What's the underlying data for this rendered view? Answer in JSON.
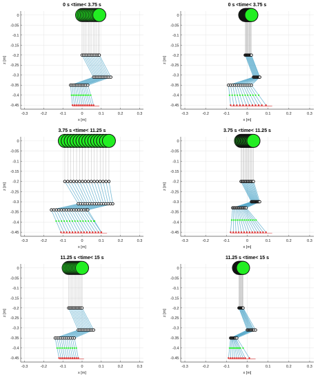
{
  "figure": {
    "axis_labels": {
      "x": "x [m]",
      "y": "z [m]"
    },
    "x_ticks": [
      "-0.3",
      "-0.2",
      "-0.1",
      "0",
      "0.1",
      "0.2",
      "0.3"
    ],
    "y_ticks": [
      "0",
      "-0.05",
      "-0.1",
      "-0.15",
      "-0.2",
      "-0.25",
      "-0.3",
      "-0.35",
      "-0.4",
      "-0.45"
    ],
    "colors": {
      "body": "#22ee22",
      "body_edge": "#111111",
      "joint": "#111111",
      "link": "#4aa3c7",
      "foot_point": "#dd3333",
      "axis": "#555555",
      "grid": "#e6e6e6"
    }
  },
  "chart_data": [
    {
      "type": "scatter",
      "title": "0 s <time< 3.75 s",
      "xlabel": "x [m]",
      "ylabel": "z [m]",
      "xlim": [
        -0.32,
        0.32
      ],
      "ylim": [
        -0.47,
        0.02
      ],
      "grid": true,
      "snapshots": 12,
      "body_x": [
        0.0,
        0.0083,
        0.0167,
        0.025,
        0.0333,
        0.0417,
        0.05,
        0.0583,
        0.0667,
        0.075,
        0.0833,
        0.09
      ],
      "body_z": 0,
      "joints_z": [
        -0.2,
        -0.31,
        -0.35
      ],
      "joint1_x": [
        0.0,
        0.0083,
        0.0167,
        0.025,
        0.0333,
        0.0417,
        0.05,
        0.0583,
        0.0667,
        0.075,
        0.0833,
        0.09
      ],
      "joint2_x": [
        0.06,
        0.068,
        0.076,
        0.084,
        0.092,
        0.1,
        0.108,
        0.116,
        0.124,
        0.132,
        0.14,
        0.15
      ],
      "joint3_x": [
        -0.06,
        -0.052,
        -0.044,
        -0.036,
        -0.028,
        -0.02,
        -0.012,
        -0.004,
        0.004,
        0.012,
        0.02,
        0.03
      ],
      "foot_x": [
        -0.05,
        -0.04,
        -0.03,
        -0.02,
        -0.01,
        0.0,
        0.01,
        0.02,
        0.03,
        0.04,
        0.05,
        0.06
      ],
      "foot_z": -0.45
    },
    {
      "type": "scatter",
      "title": "0 s <time< 3.75 s",
      "xlabel": "x [m]",
      "ylabel": "z [m]",
      "xlim": [
        -0.32,
        0.32
      ],
      "ylim": [
        -0.47,
        0.02
      ],
      "grid": true,
      "snapshots": 12,
      "body_x": [
        -0.01,
        -0.0073,
        -0.0045,
        -0.0018,
        0.0009,
        0.0036,
        0.0064,
        0.0091,
        0.0118,
        0.0145,
        0.0173,
        0.02
      ],
      "body_z": 0,
      "joints_z": [
        -0.2,
        -0.31,
        -0.35
      ],
      "joint1_x": [
        -0.01,
        -0.0073,
        -0.0045,
        -0.0018,
        0.0009,
        0.0036,
        0.0064,
        0.0091,
        0.0118,
        0.0145,
        0.0173,
        0.02
      ],
      "joint2_x": [
        0.03,
        0.033,
        0.036,
        0.039,
        0.042,
        0.045,
        0.048,
        0.051,
        0.054,
        0.057,
        0.06,
        0.06
      ],
      "joint3_x": [
        -0.09,
        -0.08,
        -0.07,
        -0.06,
        -0.05,
        -0.04,
        -0.03,
        -0.02,
        -0.01,
        -0.0,
        0.01,
        0.02
      ],
      "foot_x": [
        -0.08,
        -0.065,
        -0.05,
        -0.035,
        -0.02,
        -0.005,
        0.01,
        0.025,
        0.04,
        0.055,
        0.07,
        0.09
      ],
      "foot_z": -0.45
    },
    {
      "type": "scatter",
      "title": "3.75 s <time< 11.25 s",
      "xlabel": "x [m]",
      "ylabel": "z [m]",
      "xlim": [
        -0.32,
        0.32
      ],
      "ylim": [
        -0.47,
        0.02
      ],
      "grid": true,
      "snapshots": 16,
      "body_x": [
        -0.09,
        -0.0747,
        -0.0593,
        -0.044,
        -0.0287,
        -0.0133,
        0.002,
        0.0173,
        0.0327,
        0.048,
        0.0633,
        0.0787,
        0.094,
        0.1093,
        0.1247,
        0.14
      ],
      "body_z": 0,
      "joints_z": [
        -0.2,
        -0.31,
        -0.34
      ],
      "joint1_x": [
        -0.09,
        -0.0747,
        -0.0593,
        -0.044,
        -0.0287,
        -0.0133,
        0.002,
        0.0173,
        0.0327,
        0.048,
        0.0633,
        0.0787,
        0.094,
        0.1093,
        0.1247,
        0.14
      ],
      "joint2_x": [
        -0.02,
        -0.008,
        0.004,
        0.016,
        0.028,
        0.04,
        0.052,
        0.064,
        0.076,
        0.088,
        0.1,
        0.112,
        0.124,
        0.136,
        0.148,
        0.16
      ],
      "joint3_x": [
        -0.16,
        -0.147,
        -0.134,
        -0.121,
        -0.108,
        -0.095,
        -0.082,
        -0.069,
        -0.056,
        -0.043,
        -0.03,
        -0.017,
        -0.004,
        0.009,
        0.022,
        0.03
      ],
      "foot_x": [
        -0.11,
        -0.095,
        -0.08,
        -0.065,
        -0.05,
        -0.035,
        -0.02,
        -0.005,
        0.01,
        0.025,
        0.04,
        0.055,
        0.07,
        0.085,
        0.1,
        0.1
      ],
      "foot_z": -0.45
    },
    {
      "type": "scatter",
      "title": "3.75 s <time< 11.25 s",
      "xlabel": "x [m]",
      "ylabel": "z [m]",
      "xlim": [
        -0.32,
        0.32
      ],
      "ylim": [
        -0.47,
        0.02
      ],
      "grid": true,
      "snapshots": 14,
      "body_x": [
        -0.03,
        -0.0254,
        -0.0208,
        -0.0162,
        -0.0115,
        -0.0069,
        -0.0023,
        0.0023,
        0.0069,
        0.0115,
        0.0162,
        0.0208,
        0.0254,
        0.03
      ],
      "body_z": 0,
      "joints_z": [
        -0.2,
        -0.3,
        -0.33
      ],
      "joint1_x": [
        -0.03,
        -0.0254,
        -0.0208,
        -0.0162,
        -0.0115,
        -0.0069,
        -0.0023,
        0.0023,
        0.0069,
        0.0115,
        0.0162,
        0.0208,
        0.0254,
        0.03
      ],
      "joint2_x": [
        0.02,
        0.023,
        0.026,
        0.029,
        0.032,
        0.035,
        0.038,
        0.041,
        0.044,
        0.047,
        0.05,
        0.053,
        0.056,
        0.06
      ],
      "joint3_x": [
        -0.07,
        -0.065,
        -0.06,
        -0.055,
        -0.05,
        -0.045,
        -0.04,
        -0.035,
        -0.03,
        -0.025,
        -0.02,
        -0.015,
        -0.01,
        -0.005
      ],
      "foot_x": [
        -0.08,
        -0.067,
        -0.054,
        -0.041,
        -0.028,
        -0.015,
        -0.002,
        0.011,
        0.024,
        0.037,
        0.05,
        0.063,
        0.076,
        0.09
      ],
      "foot_z": -0.45
    },
    {
      "type": "scatter",
      "title": "11.25 s <time< 15 s",
      "xlabel": "x [m]",
      "ylabel": "z [m]",
      "xlim": [
        -0.32,
        0.32
      ],
      "ylim": [
        -0.47,
        0.02
      ],
      "grid": true,
      "snapshots": 11,
      "body_x": [
        -0.07,
        -0.063,
        -0.056,
        -0.049,
        -0.042,
        -0.035,
        -0.028,
        -0.021,
        -0.014,
        -0.007,
        0.0
      ],
      "body_z": 0,
      "joints_z": [
        -0.2,
        -0.31,
        -0.35
      ],
      "joint1_x": [
        -0.07,
        -0.063,
        -0.056,
        -0.049,
        -0.042,
        -0.035,
        -0.028,
        -0.021,
        -0.014,
        -0.007,
        0.0
      ],
      "joint2_x": [
        -0.02,
        -0.012,
        -0.004,
        0.004,
        0.012,
        0.02,
        0.028,
        0.036,
        0.044,
        0.052,
        0.06
      ],
      "joint3_x": [
        -0.14,
        -0.13,
        -0.12,
        -0.11,
        -0.1,
        -0.09,
        -0.08,
        -0.07,
        -0.06,
        -0.05,
        -0.04
      ],
      "foot_x": [
        -0.12,
        -0.11,
        -0.1,
        -0.09,
        -0.08,
        -0.07,
        -0.06,
        -0.05,
        -0.04,
        -0.03,
        -0.02
      ],
      "foot_z": -0.45
    },
    {
      "type": "scatter",
      "title": "11.25 s <time< 15 s",
      "xlabel": "x [m]",
      "ylabel": "z [m]",
      "xlim": [
        -0.32,
        0.32
      ],
      "ylim": [
        -0.47,
        0.02
      ],
      "grid": true,
      "snapshots": 10,
      "body_x": [
        -0.04,
        -0.038,
        -0.036,
        -0.033,
        -0.031,
        -0.029,
        -0.027,
        -0.024,
        -0.022,
        -0.02
      ],
      "body_z": 0,
      "joints_z": [
        -0.2,
        -0.31,
        -0.35
      ],
      "joint1_x": [
        -0.04,
        -0.038,
        -0.036,
        -0.033,
        -0.031,
        -0.029,
        -0.027,
        -0.024,
        -0.022,
        -0.02
      ],
      "joint2_x": [
        0.0,
        0.004,
        0.008,
        0.012,
        0.016,
        0.02,
        0.024,
        0.028,
        0.032,
        0.04
      ],
      "joint3_x": [
        -0.08,
        -0.077,
        -0.074,
        -0.071,
        -0.068,
        -0.065,
        -0.062,
        -0.059,
        -0.056,
        -0.05
      ],
      "foot_x": [
        -0.09,
        -0.08,
        -0.07,
        -0.06,
        -0.05,
        -0.04,
        -0.03,
        -0.02,
        -0.01,
        0.01
      ],
      "foot_z": -0.45
    }
  ]
}
